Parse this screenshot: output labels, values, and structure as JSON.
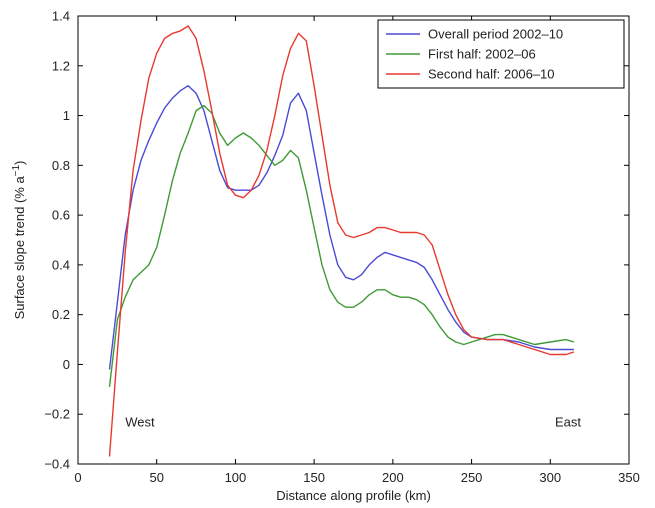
{
  "chart_data": {
    "type": "line",
    "title": "",
    "xlabel": "Distance along profile (km)",
    "ylabel": "Surface slope trend (% a",
    "ylabel_sup": "−1",
    "ylabel_close": ")",
    "xlim": [
      0,
      350
    ],
    "ylim": [
      -0.4,
      1.4
    ],
    "xticks": [
      0,
      50,
      100,
      150,
      200,
      250,
      300,
      350
    ],
    "yticks": [
      -0.4,
      -0.2,
      0,
      0.2,
      0.4,
      0.6,
      0.8,
      1,
      1.2,
      1.4
    ],
    "xtick_labels": [
      "0",
      "50",
      "100",
      "150",
      "200",
      "250",
      "300",
      "350"
    ],
    "ytick_labels": [
      "−0.4",
      "−0.2",
      "0",
      "0.2",
      "0.4",
      "0.6",
      "0.8",
      "1",
      "1.2",
      "1.4"
    ],
    "grid": false,
    "legend_position": "top-right",
    "annotations": [
      {
        "text": "West",
        "x": 30,
        "y": -0.25
      },
      {
        "text": "East",
        "x": 303,
        "y": -0.25
      }
    ],
    "series": [
      {
        "name": "Overall period 2002–10",
        "color": "#4a4ad6",
        "points": [
          [
            20,
            -0.02
          ],
          [
            25,
            0.25
          ],
          [
            30,
            0.52
          ],
          [
            35,
            0.7
          ],
          [
            40,
            0.82
          ],
          [
            45,
            0.9
          ],
          [
            50,
            0.97
          ],
          [
            55,
            1.03
          ],
          [
            60,
            1.07
          ],
          [
            65,
            1.1
          ],
          [
            70,
            1.12
          ],
          [
            75,
            1.09
          ],
          [
            80,
            1.02
          ],
          [
            85,
            0.9
          ],
          [
            90,
            0.78
          ],
          [
            95,
            0.71
          ],
          [
            100,
            0.7
          ],
          [
            105,
            0.7
          ],
          [
            110,
            0.7
          ],
          [
            115,
            0.72
          ],
          [
            120,
            0.77
          ],
          [
            125,
            0.84
          ],
          [
            130,
            0.92
          ],
          [
            135,
            1.05
          ],
          [
            140,
            1.09
          ],
          [
            145,
            1.02
          ],
          [
            150,
            0.85
          ],
          [
            155,
            0.68
          ],
          [
            160,
            0.52
          ],
          [
            165,
            0.4
          ],
          [
            170,
            0.35
          ],
          [
            175,
            0.34
          ],
          [
            180,
            0.36
          ],
          [
            185,
            0.4
          ],
          [
            190,
            0.43
          ],
          [
            195,
            0.45
          ],
          [
            200,
            0.44
          ],
          [
            205,
            0.43
          ],
          [
            210,
            0.42
          ],
          [
            215,
            0.41
          ],
          [
            220,
            0.39
          ],
          [
            225,
            0.34
          ],
          [
            230,
            0.28
          ],
          [
            235,
            0.22
          ],
          [
            240,
            0.17
          ],
          [
            245,
            0.13
          ],
          [
            250,
            0.11
          ],
          [
            260,
            0.1
          ],
          [
            270,
            0.1
          ],
          [
            280,
            0.09
          ],
          [
            290,
            0.07
          ],
          [
            300,
            0.06
          ],
          [
            310,
            0.06
          ],
          [
            315,
            0.06
          ]
        ]
      },
      {
        "name": "First half: 2002–06",
        "color": "#3f9a36",
        "points": [
          [
            20,
            -0.09
          ],
          [
            25,
            0.18
          ],
          [
            30,
            0.27
          ],
          [
            35,
            0.34
          ],
          [
            40,
            0.37
          ],
          [
            45,
            0.4
          ],
          [
            50,
            0.47
          ],
          [
            55,
            0.6
          ],
          [
            60,
            0.74
          ],
          [
            65,
            0.85
          ],
          [
            70,
            0.93
          ],
          [
            75,
            1.02
          ],
          [
            80,
            1.04
          ],
          [
            85,
            1.01
          ],
          [
            90,
            0.93
          ],
          [
            95,
            0.88
          ],
          [
            100,
            0.91
          ],
          [
            105,
            0.93
          ],
          [
            110,
            0.91
          ],
          [
            115,
            0.88
          ],
          [
            120,
            0.84
          ],
          [
            125,
            0.8
          ],
          [
            130,
            0.82
          ],
          [
            135,
            0.86
          ],
          [
            140,
            0.83
          ],
          [
            145,
            0.7
          ],
          [
            150,
            0.55
          ],
          [
            155,
            0.4
          ],
          [
            160,
            0.3
          ],
          [
            165,
            0.25
          ],
          [
            170,
            0.23
          ],
          [
            175,
            0.23
          ],
          [
            180,
            0.25
          ],
          [
            185,
            0.28
          ],
          [
            190,
            0.3
          ],
          [
            195,
            0.3
          ],
          [
            200,
            0.28
          ],
          [
            205,
            0.27
          ],
          [
            210,
            0.27
          ],
          [
            215,
            0.26
          ],
          [
            220,
            0.24
          ],
          [
            225,
            0.2
          ],
          [
            230,
            0.15
          ],
          [
            235,
            0.11
          ],
          [
            240,
            0.09
          ],
          [
            245,
            0.08
          ],
          [
            250,
            0.09
          ],
          [
            255,
            0.1
          ],
          [
            260,
            0.11
          ],
          [
            265,
            0.12
          ],
          [
            270,
            0.12
          ],
          [
            280,
            0.1
          ],
          [
            290,
            0.08
          ],
          [
            300,
            0.09
          ],
          [
            310,
            0.1
          ],
          [
            315,
            0.09
          ]
        ]
      },
      {
        "name": "Second half: 2006–10",
        "color": "#e8392e",
        "points": [
          [
            20,
            -0.37
          ],
          [
            25,
            0.05
          ],
          [
            30,
            0.45
          ],
          [
            35,
            0.78
          ],
          [
            40,
            0.98
          ],
          [
            45,
            1.15
          ],
          [
            50,
            1.25
          ],
          [
            55,
            1.31
          ],
          [
            60,
            1.33
          ],
          [
            65,
            1.34
          ],
          [
            70,
            1.36
          ],
          [
            75,
            1.31
          ],
          [
            80,
            1.18
          ],
          [
            85,
            1.02
          ],
          [
            90,
            0.85
          ],
          [
            95,
            0.72
          ],
          [
            100,
            0.68
          ],
          [
            105,
            0.67
          ],
          [
            110,
            0.7
          ],
          [
            115,
            0.76
          ],
          [
            120,
            0.86
          ],
          [
            125,
            1.0
          ],
          [
            130,
            1.16
          ],
          [
            135,
            1.27
          ],
          [
            140,
            1.33
          ],
          [
            145,
            1.3
          ],
          [
            150,
            1.12
          ],
          [
            155,
            0.92
          ],
          [
            160,
            0.72
          ],
          [
            165,
            0.57
          ],
          [
            170,
            0.52
          ],
          [
            175,
            0.51
          ],
          [
            180,
            0.52
          ],
          [
            185,
            0.53
          ],
          [
            190,
            0.55
          ],
          [
            195,
            0.55
          ],
          [
            200,
            0.54
          ],
          [
            205,
            0.53
          ],
          [
            210,
            0.53
          ],
          [
            215,
            0.53
          ],
          [
            220,
            0.52
          ],
          [
            225,
            0.48
          ],
          [
            230,
            0.38
          ],
          [
            235,
            0.28
          ],
          [
            240,
            0.2
          ],
          [
            245,
            0.14
          ],
          [
            250,
            0.11
          ],
          [
            260,
            0.1
          ],
          [
            270,
            0.1
          ],
          [
            280,
            0.08
          ],
          [
            290,
            0.06
          ],
          [
            300,
            0.04
          ],
          [
            310,
            0.04
          ],
          [
            315,
            0.05
          ]
        ]
      }
    ]
  }
}
